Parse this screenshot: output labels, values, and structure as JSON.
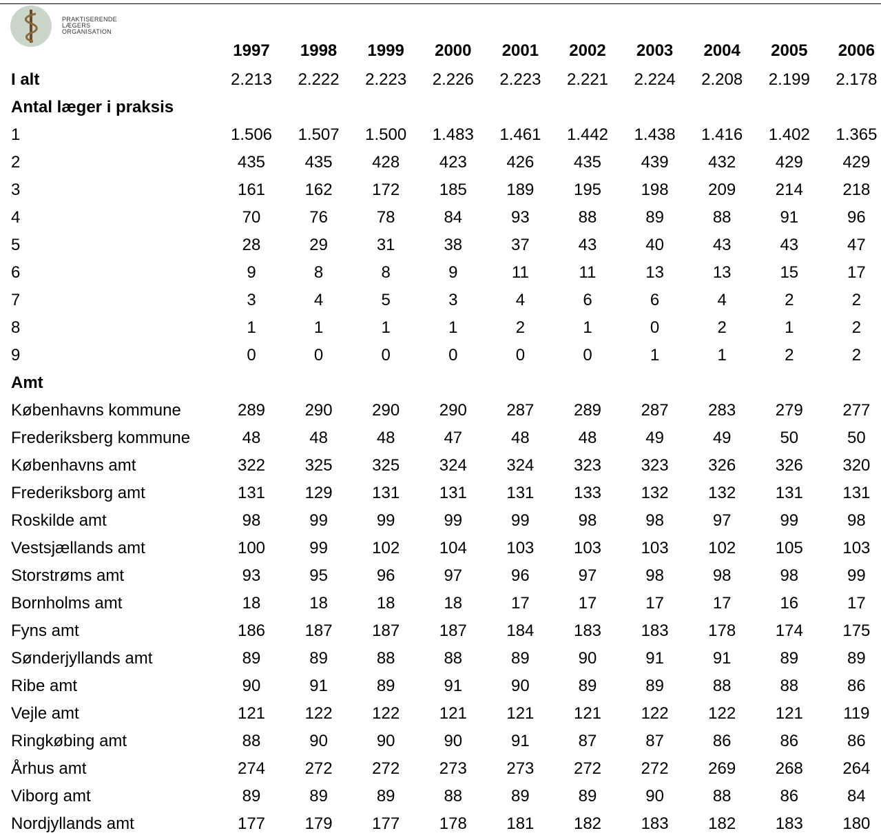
{
  "logo": {
    "lines": [
      "PRAKTISERENDE",
      "LÆGERS",
      "ORGANISATION"
    ]
  },
  "table": {
    "years": [
      "1997",
      "1998",
      "1999",
      "2000",
      "2001",
      "2002",
      "2003",
      "2004",
      "2005",
      "2006"
    ],
    "total": {
      "label": "I alt",
      "values": [
        "2.213",
        "2.222",
        "2.223",
        "2.226",
        "2.223",
        "2.221",
        "2.224",
        "2.208",
        "2.199",
        "2.178"
      ]
    },
    "sections": [
      {
        "title": "Antal læger i praksis",
        "rows": [
          {
            "label": "1",
            "values": [
              "1.506",
              "1.507",
              "1.500",
              "1.483",
              "1.461",
              "1.442",
              "1.438",
              "1.416",
              "1.402",
              "1.365"
            ]
          },
          {
            "label": "2",
            "values": [
              "435",
              "435",
              "428",
              "423",
              "426",
              "435",
              "439",
              "432",
              "429",
              "429"
            ]
          },
          {
            "label": "3",
            "values": [
              "161",
              "162",
              "172",
              "185",
              "189",
              "195",
              "198",
              "209",
              "214",
              "218"
            ]
          },
          {
            "label": "4",
            "values": [
              "70",
              "76",
              "78",
              "84",
              "93",
              "88",
              "89",
              "88",
              "91",
              "96"
            ]
          },
          {
            "label": "5",
            "values": [
              "28",
              "29",
              "31",
              "38",
              "37",
              "43",
              "40",
              "43",
              "43",
              "47"
            ]
          },
          {
            "label": "6",
            "values": [
              "9",
              "8",
              "8",
              "9",
              "11",
              "11",
              "13",
              "13",
              "15",
              "17"
            ]
          },
          {
            "label": "7",
            "values": [
              "3",
              "4",
              "5",
              "3",
              "4",
              "6",
              "6",
              "4",
              "2",
              "2"
            ]
          },
          {
            "label": "8",
            "values": [
              "1",
              "1",
              "1",
              "1",
              "2",
              "1",
              "0",
              "2",
              "1",
              "2"
            ]
          },
          {
            "label": "9",
            "values": [
              "0",
              "0",
              "0",
              "0",
              "0",
              "0",
              "1",
              "1",
              "2",
              "2"
            ]
          }
        ]
      },
      {
        "title": "Amt",
        "rows": [
          {
            "label": "Københavns kommune",
            "values": [
              "289",
              "290",
              "290",
              "290",
              "287",
              "289",
              "287",
              "283",
              "279",
              "277"
            ]
          },
          {
            "label": "Frederiksberg kommune",
            "values": [
              "48",
              "48",
              "48",
              "47",
              "48",
              "48",
              "49",
              "49",
              "50",
              "50"
            ]
          },
          {
            "label": "Københavns amt",
            "values": [
              "322",
              "325",
              "325",
              "324",
              "324",
              "323",
              "323",
              "326",
              "326",
              "320"
            ]
          },
          {
            "label": "Frederiksborg amt",
            "values": [
              "131",
              "129",
              "131",
              "131",
              "131",
              "133",
              "132",
              "132",
              "131",
              "131"
            ]
          },
          {
            "label": "Roskilde amt",
            "values": [
              "98",
              "99",
              "99",
              "99",
              "99",
              "98",
              "98",
              "97",
              "99",
              "98"
            ]
          },
          {
            "label": "Vestsjællands amt",
            "values": [
              "100",
              "99",
              "102",
              "104",
              "103",
              "103",
              "103",
              "102",
              "105",
              "103"
            ]
          },
          {
            "label": "Storstrøms amt",
            "values": [
              "93",
              "95",
              "96",
              "97",
              "96",
              "97",
              "98",
              "98",
              "98",
              "99"
            ]
          },
          {
            "label": "Bornholms amt",
            "values": [
              "18",
              "18",
              "18",
              "18",
              "17",
              "17",
              "17",
              "17",
              "16",
              "17"
            ]
          },
          {
            "label": "Fyns amt",
            "values": [
              "186",
              "187",
              "187",
              "187",
              "184",
              "183",
              "183",
              "178",
              "174",
              "175"
            ]
          },
          {
            "label": "Sønderjyllands amt",
            "values": [
              "89",
              "89",
              "88",
              "88",
              "89",
              "90",
              "91",
              "91",
              "89",
              "89"
            ]
          },
          {
            "label": "Ribe amt",
            "values": [
              "90",
              "91",
              "89",
              "91",
              "90",
              "89",
              "89",
              "88",
              "88",
              "86"
            ]
          },
          {
            "label": "Vejle amt",
            "values": [
              "121",
              "122",
              "122",
              "121",
              "121",
              "121",
              "122",
              "122",
              "121",
              "119"
            ]
          },
          {
            "label": "Ringkøbing amt",
            "values": [
              "88",
              "90",
              "90",
              "90",
              "91",
              "87",
              "87",
              "86",
              "86",
              "86"
            ]
          },
          {
            "label": "Århus amt",
            "values": [
              "274",
              "272",
              "272",
              "273",
              "273",
              "272",
              "272",
              "269",
              "268",
              "264"
            ]
          },
          {
            "label": "Viborg amt",
            "values": [
              "89",
              "89",
              "89",
              "88",
              "89",
              "89",
              "90",
              "88",
              "86",
              "84"
            ]
          },
          {
            "label": "Nordjyllands amt",
            "values": [
              "177",
              "179",
              "177",
              "178",
              "181",
              "182",
              "183",
              "182",
              "183",
              "180"
            ]
          }
        ]
      }
    ]
  }
}
